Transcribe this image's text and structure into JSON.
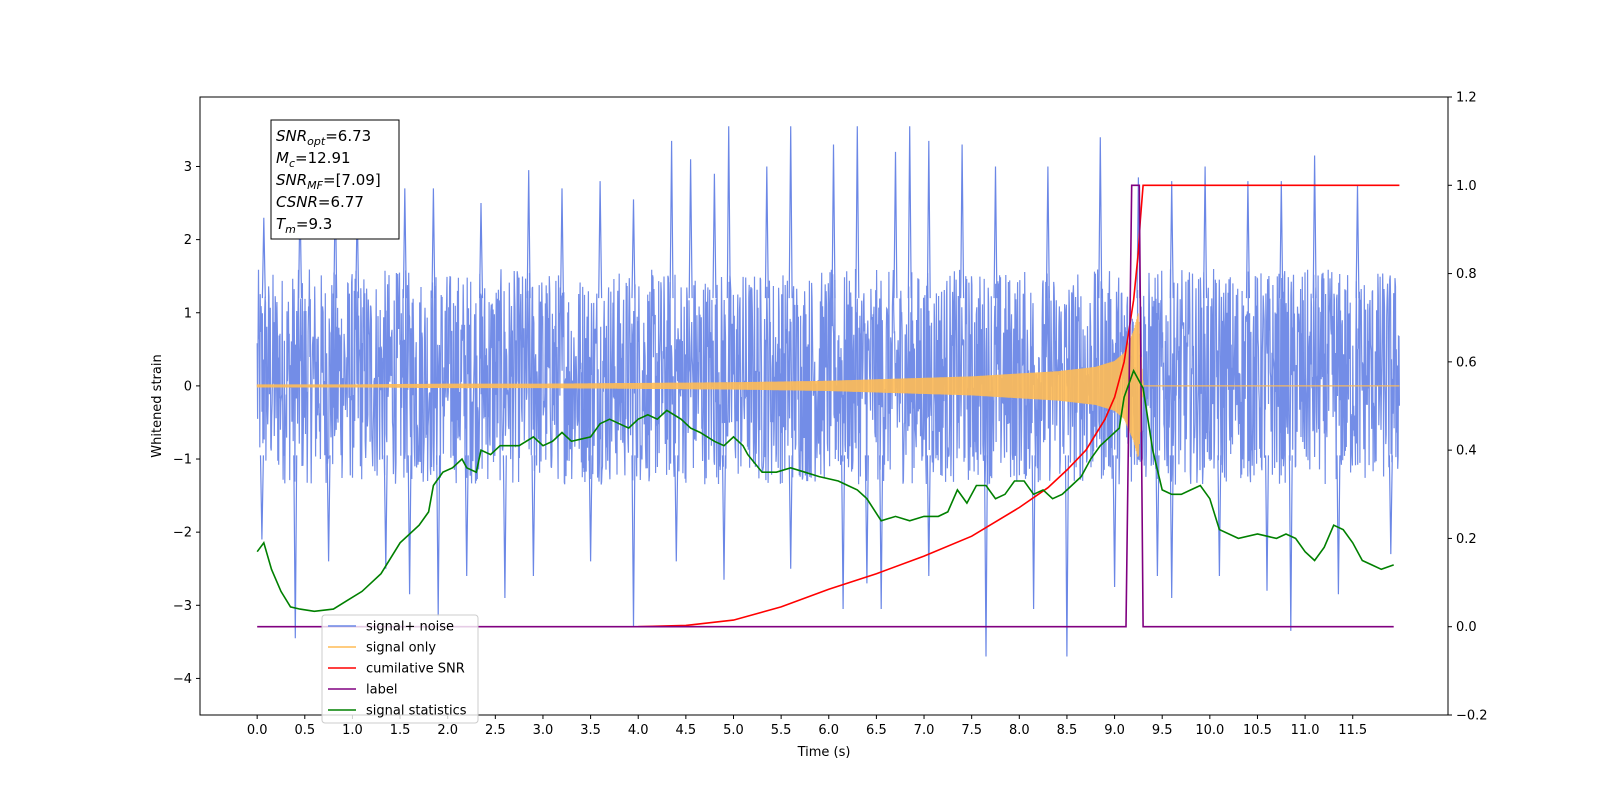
{
  "chart_data": {
    "type": "line",
    "xlabel": "Time (s)",
    "ylabel": "Whitened strain",
    "xlim": [
      -0.6,
      12.5
    ],
    "ylim": [
      -4.5,
      3.95
    ],
    "ylim_right": [
      -0.2,
      1.2
    ],
    "x_ticks": [
      0.0,
      0.5,
      1.0,
      1.5,
      2.0,
      2.5,
      3.0,
      3.5,
      4.0,
      4.5,
      5.0,
      5.5,
      6.0,
      6.5,
      7.0,
      7.5,
      8.0,
      8.5,
      9.0,
      9.5,
      10.0,
      10.5,
      11.0,
      11.5
    ],
    "x_tick_labels": [
      "0.0",
      "0.5",
      "1.0",
      "1.5",
      "2.0",
      "2.5",
      "3.0",
      "3.5",
      "4.0",
      "4.5",
      "5.0",
      "5.5",
      "6.0",
      "6.5",
      "7.0",
      "7.5",
      "8.0",
      "8.5",
      "9.0",
      "9.5",
      "10.0",
      "10.5",
      "11.0",
      "11.5"
    ],
    "y_ticks": [
      -4,
      -3,
      -2,
      -1,
      0,
      1,
      2,
      3
    ],
    "y_tick_labels": [
      "−4",
      "−3",
      "−2",
      "−1",
      "0",
      "1",
      "2",
      "3"
    ],
    "y_right_ticks": [
      -0.2,
      0.0,
      0.2,
      0.4,
      0.6,
      0.8,
      1.0,
      1.2
    ],
    "y_right_tick_labels": [
      "−0.2",
      "0.0",
      "0.2",
      "0.4",
      "0.6",
      "0.8",
      "1.0",
      "1.2"
    ],
    "legend_placement": "lower-left",
    "legend": [
      {
        "label": "signal+ noise",
        "color": "#6b87e6"
      },
      {
        "label": "signal only",
        "color": "#ffbb55"
      },
      {
        "label": "cumilative SNR",
        "color": "#ff0000"
      },
      {
        "label": "label",
        "color": "#800080"
      },
      {
        "label": "signal statistics",
        "color": "#008000"
      }
    ],
    "info_box": {
      "lines": [
        {
          "base": "SNR",
          "sub": "opt",
          "rest": "=6.73"
        },
        {
          "base": "M",
          "sub": "c",
          "rest": "=12.91"
        },
        {
          "base": "SNR",
          "sub": "MF",
          "rest": "=[7.09]"
        },
        {
          "base": "CSNR",
          "sub": "",
          "rest": "=6.77"
        },
        {
          "base": "T",
          "sub": "m",
          "rest": "=9.3"
        }
      ]
    },
    "series": [
      {
        "name": "signal+ noise",
        "axis": "left",
        "style": "noise",
        "x_range": [
          0.0,
          11.99
        ],
        "band": [
          -1.35,
          1.6
        ],
        "peaks_up": [
          [
            0.07,
            2.3
          ],
          [
            0.45,
            2.6
          ],
          [
            0.82,
            2.8
          ],
          [
            1.05,
            2.5
          ],
          [
            1.55,
            2.7
          ],
          [
            1.85,
            2.7
          ],
          [
            2.35,
            2.5
          ],
          [
            2.85,
            2.95
          ],
          [
            3.2,
            2.7
          ],
          [
            3.6,
            2.8
          ],
          [
            3.95,
            2.55
          ],
          [
            4.35,
            3.35
          ],
          [
            4.55,
            3.1
          ],
          [
            4.8,
            2.9
          ],
          [
            4.95,
            3.55
          ],
          [
            5.35,
            3.0
          ],
          [
            5.6,
            3.55
          ],
          [
            6.05,
            3.3
          ],
          [
            6.3,
            3.55
          ],
          [
            6.7,
            3.2
          ],
          [
            6.85,
            3.55
          ],
          [
            7.05,
            3.35
          ],
          [
            7.4,
            3.3
          ],
          [
            7.75,
            3.0
          ],
          [
            8.3,
            3.0
          ],
          [
            8.85,
            3.4
          ],
          [
            9.25,
            2.85
          ],
          [
            9.6,
            2.8
          ],
          [
            9.95,
            3.0
          ],
          [
            10.4,
            2.8
          ],
          [
            10.75,
            2.8
          ],
          [
            11.1,
            3.15
          ],
          [
            11.55,
            2.75
          ]
        ],
        "peaks_down": [
          [
            0.05,
            -2.1
          ],
          [
            0.4,
            -3.45
          ],
          [
            0.75,
            -2.4
          ],
          [
            1.35,
            -2.5
          ],
          [
            1.6,
            -2.85
          ],
          [
            1.9,
            -3.15
          ],
          [
            2.2,
            -2.6
          ],
          [
            2.6,
            -2.9
          ],
          [
            2.9,
            -2.6
          ],
          [
            3.5,
            -2.4
          ],
          [
            3.95,
            -3.3
          ],
          [
            4.4,
            -2.4
          ],
          [
            4.9,
            -2.65
          ],
          [
            5.6,
            -2.5
          ],
          [
            6.15,
            -3.05
          ],
          [
            6.4,
            -2.7
          ],
          [
            6.55,
            -3.05
          ],
          [
            7.05,
            -2.6
          ],
          [
            7.65,
            -3.7
          ],
          [
            8.15,
            -3.05
          ],
          [
            8.5,
            -3.7
          ],
          [
            9.0,
            -2.75
          ],
          [
            9.45,
            -2.6
          ],
          [
            9.6,
            -2.9
          ],
          [
            10.1,
            -2.6
          ],
          [
            10.6,
            -2.8
          ],
          [
            10.85,
            -3.35
          ],
          [
            11.35,
            -2.85
          ],
          [
            11.9,
            -2.3
          ]
        ]
      },
      {
        "name": "signal only",
        "axis": "left",
        "style": "chirp",
        "x": [
          0.0,
          1.0,
          2.0,
          3.0,
          4.0,
          5.0,
          6.0,
          6.5,
          7.0,
          7.5,
          8.0,
          8.4,
          8.8,
          9.0,
          9.1,
          9.2,
          9.25,
          9.3,
          11.99
        ],
        "amplitude": [
          0.02,
          0.02,
          0.03,
          0.03,
          0.04,
          0.05,
          0.07,
          0.09,
          0.11,
          0.13,
          0.17,
          0.2,
          0.26,
          0.34,
          0.45,
          0.75,
          1.0,
          0.0,
          0.0
        ]
      },
      {
        "name": "cumilative SNR",
        "axis": "right",
        "x": [
          4.0,
          4.5,
          5.0,
          5.5,
          6.0,
          6.5,
          7.0,
          7.5,
          8.0,
          8.3,
          8.5,
          8.7,
          8.9,
          9.0,
          9.1,
          9.2,
          9.25,
          9.27,
          9.3,
          11.99
        ],
        "y": [
          0.0,
          0.003,
          0.015,
          0.045,
          0.085,
          0.12,
          0.16,
          0.205,
          0.27,
          0.315,
          0.355,
          0.4,
          0.47,
          0.52,
          0.6,
          0.74,
          0.85,
          0.92,
          1.0,
          1.0
        ]
      },
      {
        "name": "label",
        "axis": "right",
        "x": [
          0.0,
          9.12,
          9.18,
          9.26,
          9.3,
          11.93
        ],
        "y": [
          0.0,
          0.0,
          1.0,
          1.0,
          0.0,
          0.0
        ]
      },
      {
        "name": "signal statistics",
        "axis": "right",
        "x": [
          0.0,
          0.07,
          0.15,
          0.25,
          0.35,
          0.45,
          0.6,
          0.8,
          0.95,
          1.1,
          1.3,
          1.5,
          1.7,
          1.8,
          1.85,
          1.95,
          2.05,
          2.15,
          2.2,
          2.3,
          2.35,
          2.45,
          2.55,
          2.65,
          2.75,
          2.9,
          3.0,
          3.1,
          3.2,
          3.3,
          3.5,
          3.6,
          3.7,
          3.8,
          3.9,
          4.0,
          4.1,
          4.2,
          4.3,
          4.45,
          4.55,
          4.65,
          4.8,
          4.9,
          5.0,
          5.1,
          5.15,
          5.3,
          5.45,
          5.6,
          5.75,
          5.9,
          6.1,
          6.2,
          6.3,
          6.4,
          6.55,
          6.7,
          6.85,
          7.0,
          7.15,
          7.25,
          7.35,
          7.45,
          7.55,
          7.65,
          7.75,
          7.85,
          7.95,
          8.05,
          8.15,
          8.25,
          8.35,
          8.45,
          8.55,
          8.65,
          8.75,
          8.85,
          8.95,
          9.05,
          9.1,
          9.2,
          9.3,
          9.4,
          9.5,
          9.6,
          9.7,
          9.8,
          9.9,
          10.0,
          10.1,
          10.3,
          10.5,
          10.7,
          10.8,
          10.9,
          11.0,
          11.1,
          11.2,
          11.3,
          11.4,
          11.5,
          11.6,
          11.7,
          11.8,
          11.93
        ],
        "y": [
          0.17,
          0.19,
          0.13,
          0.08,
          0.045,
          0.04,
          0.035,
          0.04,
          0.06,
          0.08,
          0.12,
          0.19,
          0.23,
          0.26,
          0.32,
          0.35,
          0.36,
          0.38,
          0.36,
          0.35,
          0.4,
          0.39,
          0.41,
          0.41,
          0.41,
          0.43,
          0.41,
          0.42,
          0.44,
          0.42,
          0.43,
          0.46,
          0.47,
          0.46,
          0.45,
          0.47,
          0.48,
          0.47,
          0.49,
          0.47,
          0.45,
          0.44,
          0.42,
          0.41,
          0.43,
          0.41,
          0.39,
          0.35,
          0.35,
          0.36,
          0.35,
          0.34,
          0.33,
          0.32,
          0.31,
          0.29,
          0.24,
          0.25,
          0.24,
          0.25,
          0.25,
          0.26,
          0.31,
          0.28,
          0.32,
          0.32,
          0.29,
          0.3,
          0.33,
          0.33,
          0.3,
          0.31,
          0.29,
          0.3,
          0.32,
          0.34,
          0.38,
          0.41,
          0.43,
          0.45,
          0.52,
          0.58,
          0.54,
          0.4,
          0.31,
          0.3,
          0.3,
          0.31,
          0.32,
          0.29,
          0.22,
          0.2,
          0.21,
          0.2,
          0.21,
          0.2,
          0.17,
          0.15,
          0.18,
          0.23,
          0.22,
          0.19,
          0.15,
          0.14,
          0.13,
          0.14
        ]
      }
    ]
  }
}
